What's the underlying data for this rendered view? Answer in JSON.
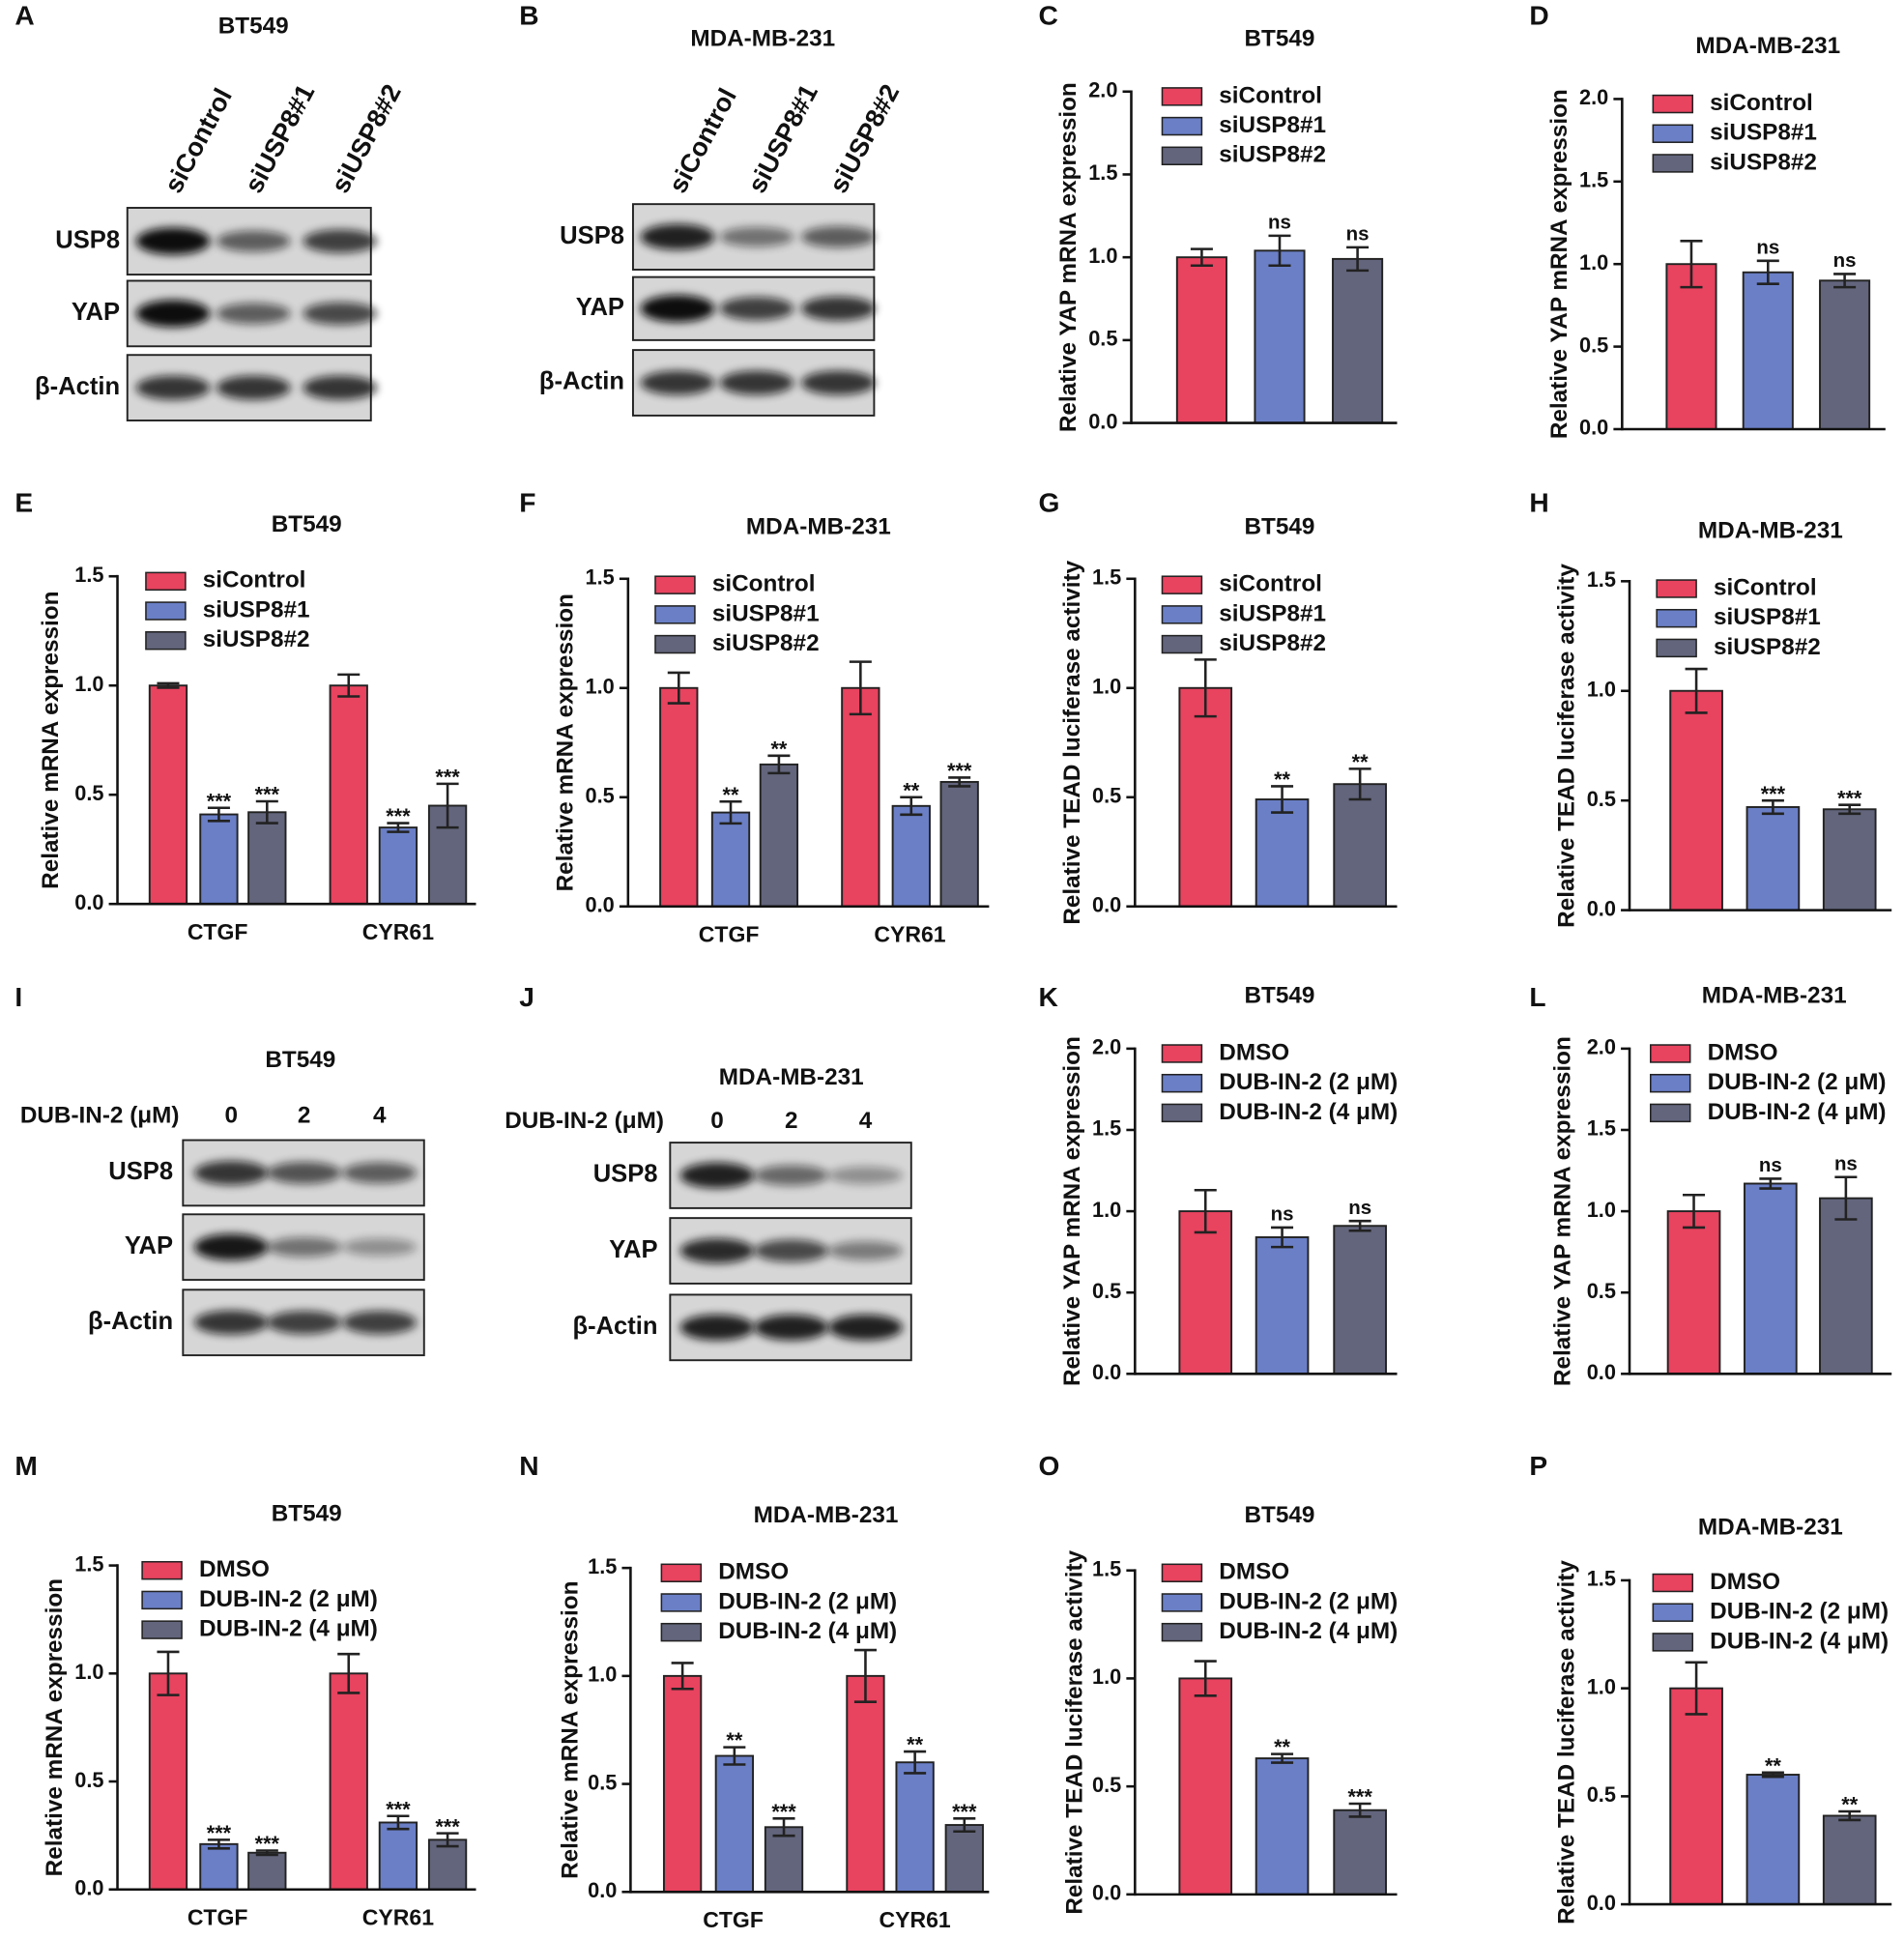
{
  "chart_data": [
    {
      "type": "bar",
      "panel": "C",
      "title": "BT549",
      "ylabel": "Relative YAP mRNA expression",
      "categories": [
        null
      ],
      "ylim": [
        0,
        2
      ],
      "yticks": [
        {
          "value": 0,
          "label": "0.0"
        },
        {
          "value": 0.5,
          "label": "0.5"
        },
        {
          "value": 1,
          "label": "1.0"
        },
        {
          "value": 1.5,
          "label": "1.5"
        },
        {
          "value": 2,
          "label": "2.0"
        }
      ],
      "legend": "upper right",
      "series": [
        {
          "name": "siControl",
          "color": "#e8435f",
          "values": [
            1.0
          ],
          "errors": [
            0.05
          ],
          "annotations": [
            null
          ]
        },
        {
          "name": "siUSP8#1",
          "color": "#6a7fc6",
          "values": [
            1.04
          ],
          "errors": [
            0.09
          ],
          "annotations": [
            "ns"
          ]
        },
        {
          "name": "siUSP8#2",
          "color": "#62657c",
          "values": [
            0.99
          ],
          "errors": [
            0.07
          ],
          "annotations": [
            "ns"
          ]
        }
      ]
    },
    {
      "type": "bar",
      "panel": "D",
      "title": "MDA-MB-231",
      "ylabel": "Relative YAP mRNA expression",
      "categories": [
        null
      ],
      "ylim": [
        0,
        2
      ],
      "yticks": [
        {
          "value": 0,
          "label": "0.0"
        },
        {
          "value": 0.5,
          "label": "0.5"
        },
        {
          "value": 1,
          "label": "1.0"
        },
        {
          "value": 1.5,
          "label": "1.5"
        },
        {
          "value": 2,
          "label": "2.0"
        }
      ],
      "legend": "upper right",
      "series": [
        {
          "name": "siControl",
          "color": "#e8435f",
          "values": [
            1.0
          ],
          "errors": [
            0.14
          ],
          "annotations": [
            null
          ]
        },
        {
          "name": "siUSP8#1",
          "color": "#6a7fc6",
          "values": [
            0.95
          ],
          "errors": [
            0.07
          ],
          "annotations": [
            "ns"
          ]
        },
        {
          "name": "siUSP8#2",
          "color": "#62657c",
          "values": [
            0.9
          ],
          "errors": [
            0.04
          ],
          "annotations": [
            "ns"
          ]
        }
      ]
    },
    {
      "type": "bar",
      "panel": "E",
      "title": "BT549",
      "ylabel": "Relative mRNA expression",
      "categories": [
        "CTGF",
        "CYR61"
      ],
      "ylim": [
        0,
        1.5
      ],
      "yticks": [
        {
          "value": 0,
          "label": "0.0"
        },
        {
          "value": 0.5,
          "label": "0.5"
        },
        {
          "value": 1,
          "label": "1.0"
        },
        {
          "value": 1.5,
          "label": "1.5"
        }
      ],
      "legend": "upper right",
      "series": [
        {
          "name": "siControl",
          "color": "#e8435f",
          "values": [
            1.0,
            1.0
          ],
          "errors": [
            0.01,
            0.05
          ],
          "annotations": [
            null,
            null
          ]
        },
        {
          "name": "siUSP8#1",
          "color": "#6a7fc6",
          "values": [
            0.41,
            0.35
          ],
          "errors": [
            0.03,
            0.02
          ],
          "annotations": [
            "***",
            "***"
          ]
        },
        {
          "name": "siUSP8#2",
          "color": "#62657c",
          "values": [
            0.42,
            0.45
          ],
          "errors": [
            0.05,
            0.1
          ],
          "annotations": [
            "***",
            "***"
          ]
        }
      ]
    },
    {
      "type": "bar",
      "panel": "F",
      "title": "MDA-MB-231",
      "ylabel": "Relative mRNA expression",
      "categories": [
        "CTGF",
        "CYR61"
      ],
      "ylim": [
        0,
        1.5
      ],
      "yticks": [
        {
          "value": 0,
          "label": "0.0"
        },
        {
          "value": 0.5,
          "label": "0.5"
        },
        {
          "value": 1,
          "label": "1.0"
        },
        {
          "value": 1.5,
          "label": "1.5"
        }
      ],
      "legend": "upper right",
      "series": [
        {
          "name": "siControl",
          "color": "#e8435f",
          "values": [
            1.0,
            1.0
          ],
          "errors": [
            0.07,
            0.12
          ],
          "annotations": [
            null,
            null
          ]
        },
        {
          "name": "siUSP8#1",
          "color": "#6a7fc6",
          "values": [
            0.43,
            0.46
          ],
          "errors": [
            0.05,
            0.04
          ],
          "annotations": [
            "**",
            "**"
          ]
        },
        {
          "name": "siUSP8#2",
          "color": "#62657c",
          "values": [
            0.65,
            0.57
          ],
          "errors": [
            0.04,
            0.02
          ],
          "annotations": [
            "**",
            "***"
          ]
        }
      ]
    },
    {
      "type": "bar",
      "panel": "G",
      "title": "BT549",
      "ylabel": "Relative TEAD luciferase activity",
      "categories": [
        null
      ],
      "ylim": [
        0,
        1.5
      ],
      "yticks": [
        {
          "value": 0,
          "label": "0.0"
        },
        {
          "value": 0.5,
          "label": "0.5"
        },
        {
          "value": 1,
          "label": "1.0"
        },
        {
          "value": 1.5,
          "label": "1.5"
        }
      ],
      "legend": "upper right",
      "series": [
        {
          "name": "siControl",
          "color": "#e8435f",
          "values": [
            1.0
          ],
          "errors": [
            0.13
          ],
          "annotations": [
            null
          ]
        },
        {
          "name": "siUSP8#1",
          "color": "#6a7fc6",
          "values": [
            0.49
          ],
          "errors": [
            0.06
          ],
          "annotations": [
            "**"
          ]
        },
        {
          "name": "siUSP8#2",
          "color": "#62657c",
          "values": [
            0.56
          ],
          "errors": [
            0.07
          ],
          "annotations": [
            "**"
          ]
        }
      ]
    },
    {
      "type": "bar",
      "panel": "H",
      "title": "MDA-MB-231",
      "ylabel": "Relative TEAD luciferase activity",
      "categories": [
        null
      ],
      "ylim": [
        0,
        1.5
      ],
      "yticks": [
        {
          "value": 0,
          "label": "0.0"
        },
        {
          "value": 0.5,
          "label": "0.5"
        },
        {
          "value": 1,
          "label": "1.0"
        },
        {
          "value": 1.5,
          "label": "1.5"
        }
      ],
      "legend": "upper right",
      "series": [
        {
          "name": "siControl",
          "color": "#e8435f",
          "values": [
            1.0
          ],
          "errors": [
            0.1
          ],
          "annotations": [
            null
          ]
        },
        {
          "name": "siUSP8#1",
          "color": "#6a7fc6",
          "values": [
            0.47
          ],
          "errors": [
            0.03
          ],
          "annotations": [
            "***"
          ]
        },
        {
          "name": "siUSP8#2",
          "color": "#62657c",
          "values": [
            0.46
          ],
          "errors": [
            0.02
          ],
          "annotations": [
            "***"
          ]
        }
      ]
    },
    {
      "type": "bar",
      "panel": "K",
      "title": "BT549",
      "ylabel": "Relative YAP mRNA expression",
      "categories": [
        null
      ],
      "ylim": [
        0,
        2
      ],
      "yticks": [
        {
          "value": 0,
          "label": "0.0"
        },
        {
          "value": 0.5,
          "label": "0.5"
        },
        {
          "value": 1,
          "label": "1.0"
        },
        {
          "value": 1.5,
          "label": "1.5"
        },
        {
          "value": 2,
          "label": "2.0"
        }
      ],
      "legend": "upper right",
      "series": [
        {
          "name": "DMSO",
          "color": "#e8435f",
          "values": [
            1.0
          ],
          "errors": [
            0.13
          ],
          "annotations": [
            null
          ]
        },
        {
          "name": "DUB-IN-2 (2 μM)",
          "color": "#6a7fc6",
          "values": [
            0.84
          ],
          "errors": [
            0.06
          ],
          "annotations": [
            "ns"
          ]
        },
        {
          "name": "DUB-IN-2 (4 μM)",
          "color": "#62657c",
          "values": [
            0.91
          ],
          "errors": [
            0.03
          ],
          "annotations": [
            "ns"
          ]
        }
      ]
    },
    {
      "type": "bar",
      "panel": "L",
      "title": "MDA-MB-231",
      "ylabel": "Relative YAP mRNA expression",
      "categories": [
        null
      ],
      "ylim": [
        0,
        2
      ],
      "yticks": [
        {
          "value": 0,
          "label": "0.0"
        },
        {
          "value": 0.5,
          "label": "0.5"
        },
        {
          "value": 1,
          "label": "1.0"
        },
        {
          "value": 1.5,
          "label": "1.5"
        },
        {
          "value": 2,
          "label": "2.0"
        }
      ],
      "legend": "upper right",
      "series": [
        {
          "name": "DMSO",
          "color": "#e8435f",
          "values": [
            1.0
          ],
          "errors": [
            0.1
          ],
          "annotations": [
            null
          ]
        },
        {
          "name": "DUB-IN-2 (2 μM)",
          "color": "#6a7fc6",
          "values": [
            1.17
          ],
          "errors": [
            0.03
          ],
          "annotations": [
            "ns"
          ]
        },
        {
          "name": "DUB-IN-2 (4 μM)",
          "color": "#62657c",
          "values": [
            1.08
          ],
          "errors": [
            0.13
          ],
          "annotations": [
            "ns"
          ]
        }
      ]
    },
    {
      "type": "bar",
      "panel": "M",
      "title": "BT549",
      "ylabel": "Relative mRNA expression",
      "categories": [
        "CTGF",
        "CYR61"
      ],
      "ylim": [
        0,
        1.5
      ],
      "yticks": [
        {
          "value": 0,
          "label": "0.0"
        },
        {
          "value": 0.5,
          "label": "0.5"
        },
        {
          "value": 1,
          "label": "1.0"
        },
        {
          "value": 1.5,
          "label": "1.5"
        }
      ],
      "legend": "upper right",
      "series": [
        {
          "name": "DMSO",
          "color": "#e8435f",
          "values": [
            1.0,
            1.0
          ],
          "errors": [
            0.1,
            0.09
          ],
          "annotations": [
            null,
            null
          ]
        },
        {
          "name": "DUB-IN-2 (2 μM)",
          "color": "#6a7fc6",
          "values": [
            0.21,
            0.31
          ],
          "errors": [
            0.02,
            0.03
          ],
          "annotations": [
            "***",
            "***"
          ]
        },
        {
          "name": "DUB-IN-2 (4 μM)",
          "color": "#62657c",
          "values": [
            0.17,
            0.23
          ],
          "errors": [
            0.01,
            0.03
          ],
          "annotations": [
            "***",
            "***"
          ]
        }
      ]
    },
    {
      "type": "bar",
      "panel": "N",
      "title": "MDA-MB-231",
      "ylabel": "Relative mRNA expression",
      "categories": [
        "CTGF",
        "CYR61"
      ],
      "ylim": [
        0,
        1.5
      ],
      "yticks": [
        {
          "value": 0,
          "label": "0.0"
        },
        {
          "value": 0.5,
          "label": "0.5"
        },
        {
          "value": 1,
          "label": "1.0"
        },
        {
          "value": 1.5,
          "label": "1.5"
        }
      ],
      "legend": "upper right",
      "series": [
        {
          "name": "DMSO",
          "color": "#e8435f",
          "values": [
            1.0,
            1.0
          ],
          "errors": [
            0.06,
            0.12
          ],
          "annotations": [
            null,
            null
          ]
        },
        {
          "name": "DUB-IN-2 (2 μM)",
          "color": "#6a7fc6",
          "values": [
            0.63,
            0.6
          ],
          "errors": [
            0.04,
            0.05
          ],
          "annotations": [
            "**",
            "**"
          ]
        },
        {
          "name": "DUB-IN-2 (4 μM)",
          "color": "#62657c",
          "values": [
            0.3,
            0.31
          ],
          "errors": [
            0.04,
            0.03
          ],
          "annotations": [
            "***",
            "***"
          ]
        }
      ]
    },
    {
      "type": "bar",
      "panel": "O",
      "title": "BT549",
      "ylabel": "Relative TEAD luciferase activity",
      "categories": [
        null
      ],
      "ylim": [
        0,
        1.5
      ],
      "yticks": [
        {
          "value": 0,
          "label": "0.0"
        },
        {
          "value": 0.5,
          "label": "0.5"
        },
        {
          "value": 1,
          "label": "1.0"
        },
        {
          "value": 1.5,
          "label": "1.5"
        }
      ],
      "legend": "upper right",
      "series": [
        {
          "name": "DMSO",
          "color": "#e8435f",
          "values": [
            1.0
          ],
          "errors": [
            0.08
          ],
          "annotations": [
            null
          ]
        },
        {
          "name": "DUB-IN-2 (2 μM)",
          "color": "#6a7fc6",
          "values": [
            0.63
          ],
          "errors": [
            0.02
          ],
          "annotations": [
            "**"
          ]
        },
        {
          "name": "DUB-IN-2 (4 μM)",
          "color": "#62657c",
          "values": [
            0.39
          ],
          "errors": [
            0.03
          ],
          "annotations": [
            "***"
          ]
        }
      ]
    },
    {
      "type": "bar",
      "panel": "P",
      "title": "MDA-MB-231",
      "ylabel": "Relative TEAD luciferase activity",
      "categories": [
        null
      ],
      "ylim": [
        0,
        1.5
      ],
      "yticks": [
        {
          "value": 0,
          "label": "0.0"
        },
        {
          "value": 0.5,
          "label": "0.5"
        },
        {
          "value": 1,
          "label": "1.0"
        },
        {
          "value": 1.5,
          "label": "1.5"
        }
      ],
      "legend": "upper right",
      "series": [
        {
          "name": "DMSO",
          "color": "#e8435f",
          "values": [
            1.0
          ],
          "errors": [
            0.12
          ],
          "annotations": [
            null
          ]
        },
        {
          "name": "DUB-IN-2 (2 μM)",
          "color": "#6a7fc6",
          "values": [
            0.6
          ],
          "errors": [
            0.01
          ],
          "annotations": [
            "**"
          ]
        },
        {
          "name": "DUB-IN-2 (4 μM)",
          "color": "#62657c",
          "values": [
            0.41
          ],
          "errors": [
            0.02
          ],
          "annotations": [
            "**"
          ]
        }
      ]
    }
  ],
  "blots": [
    {
      "panel": "A",
      "title": "BT549",
      "lanes": [
        "siControl",
        "siUSP8#1",
        "siUSP8#2"
      ],
      "rows": [
        "USP8",
        "YAP",
        "β-Actin"
      ]
    },
    {
      "panel": "B",
      "title": "MDA-MB-231",
      "lanes": [
        "siControl",
        "siUSP8#1",
        "siUSP8#2"
      ],
      "rows": [
        "USP8",
        "YAP",
        "β-Actin"
      ]
    },
    {
      "panel": "I",
      "title": "BT549",
      "treatment": "DUB-IN-2 (μM)",
      "lanes": [
        "0",
        "2",
        "4"
      ],
      "rows": [
        "USP8",
        "YAP",
        "β-Actin"
      ]
    },
    {
      "panel": "J",
      "title": "MDA-MB-231",
      "treatment": "DUB-IN-2 (μM)",
      "lanes": [
        "0",
        "2",
        "4"
      ],
      "rows": [
        "USP8",
        "YAP",
        "β-Actin"
      ]
    }
  ]
}
